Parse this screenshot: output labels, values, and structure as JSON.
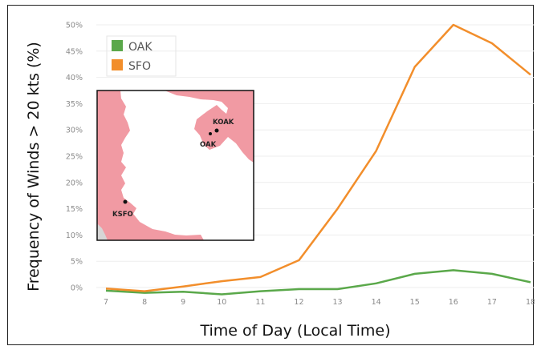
{
  "chart_data": {
    "type": "line",
    "xlabel": "Time of Day (Local Time)",
    "ylabel": "Frequency of Winds > 20 kts (%)",
    "x": [
      7,
      8,
      9,
      10,
      11,
      12,
      13,
      14,
      15,
      16,
      17,
      18
    ],
    "x_ticks": [
      "7",
      "8",
      "9",
      "10",
      "11",
      "12",
      "13",
      "14",
      "15",
      "16",
      "17",
      "18"
    ],
    "y_ticks": [
      "0%",
      "5%",
      "10%",
      "15%",
      "20%",
      "25%",
      "30%",
      "35%",
      "40%",
      "45%",
      "50%"
    ],
    "y_tick_values": [
      0,
      5,
      10,
      15,
      20,
      25,
      30,
      35,
      40,
      45,
      50
    ],
    "xlim": [
      7,
      18
    ],
    "ylim": [
      0,
      50
    ],
    "grid": "horizontal",
    "legend_position": "top-left",
    "series": [
      {
        "name": "OAK",
        "color": "#5aa84a",
        "values": [
          -0.6,
          -1.0,
          -0.8,
          -1.3,
          -0.7,
          -0.3,
          -0.3,
          0.8,
          2.6,
          3.3,
          2.6,
          1.0
        ]
      },
      {
        "name": "SFO",
        "color": "#f28e2b",
        "values": [
          -0.2,
          -0.7,
          0.2,
          1.2,
          2.0,
          5.2,
          15.0,
          26.0,
          42.0,
          50.0,
          46.5,
          40.5
        ]
      }
    ],
    "inset_map": {
      "land_color": "#f19aa3",
      "station_labels": [
        "KOAK",
        "OAK",
        "KSFO"
      ]
    }
  }
}
